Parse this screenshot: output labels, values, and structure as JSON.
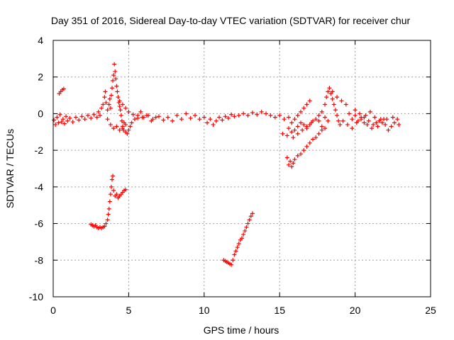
{
  "chart_data": {
    "type": "scatter",
    "title": "Day 351 of 2016, Sidereal Day-to-day VTEC variation (SDTVAR) for receiver chur",
    "xlabel": "GPS time / hours",
    "ylabel": "SDTVAR / TECUs",
    "xlim": [
      0,
      25
    ],
    "ylim": [
      -10,
      4
    ],
    "xticks": [
      0,
      5,
      10,
      15,
      20,
      25
    ],
    "yticks": [
      4,
      2,
      0,
      -2,
      -4,
      -6,
      -8,
      -10
    ],
    "grid": true,
    "marker": "+",
    "color": "#ff0000",
    "series": [
      {
        "name": "SDTVAR",
        "points": [
          [
            0.05,
            -0.35
          ],
          [
            0.15,
            -0.6
          ],
          [
            0.25,
            -0.2
          ],
          [
            0.35,
            -0.5
          ],
          [
            0.45,
            -0.05
          ],
          [
            0.55,
            -0.45
          ],
          [
            0.65,
            -0.3
          ],
          [
            0.75,
            -0.55
          ],
          [
            0.85,
            -0.15
          ],
          [
            0.95,
            -0.4
          ],
          [
            1.1,
            -0.25
          ],
          [
            1.3,
            -0.45
          ],
          [
            1.5,
            -0.2
          ],
          [
            1.7,
            -0.35
          ],
          [
            1.9,
            -0.15
          ],
          [
            2.1,
            -0.3
          ],
          [
            2.3,
            -0.1
          ],
          [
            2.5,
            -0.25
          ],
          [
            2.7,
            -0.05
          ],
          [
            2.9,
            -0.2
          ],
          [
            3.0,
            0.1
          ],
          [
            3.1,
            -0.1
          ],
          [
            3.2,
            0.3
          ],
          [
            3.3,
            0.5
          ],
          [
            3.4,
            0.9
          ],
          [
            3.45,
            1.2
          ],
          [
            3.5,
            0.6
          ],
          [
            3.6,
            0.2
          ],
          [
            3.7,
            0.5
          ],
          [
            3.75,
            0.8
          ],
          [
            3.8,
            0.3
          ],
          [
            3.85,
            1.0
          ],
          [
            3.9,
            1.4
          ],
          [
            3.95,
            1.8
          ],
          [
            4.0,
            2.1
          ],
          [
            4.05,
            2.7
          ],
          [
            4.1,
            2.3
          ],
          [
            4.15,
            1.9
          ],
          [
            4.2,
            1.5
          ],
          [
            4.25,
            1.2
          ],
          [
            4.3,
            0.9
          ],
          [
            4.35,
            0.6
          ],
          [
            4.4,
            0.4
          ],
          [
            4.45,
            0.2
          ],
          [
            4.5,
            -0.1
          ],
          [
            4.55,
            -0.4
          ],
          [
            4.6,
            -0.7
          ],
          [
            4.65,
            -0.9
          ],
          [
            4.7,
            -0.5
          ],
          [
            4.8,
            -1.0
          ],
          [
            4.9,
            -1.1
          ],
          [
            5.0,
            -0.9
          ],
          [
            5.1,
            -0.7
          ],
          [
            5.2,
            -0.5
          ],
          [
            5.4,
            -0.3
          ],
          [
            5.6,
            -0.1
          ],
          [
            5.8,
            0.1
          ],
          [
            6.0,
            -0.2
          ],
          [
            6.3,
            -0.1
          ],
          [
            6.6,
            -0.3
          ],
          [
            4.4,
            0.7
          ],
          [
            4.6,
            0.5
          ],
          [
            4.8,
            0.3
          ],
          [
            5.0,
            0.1
          ],
          [
            5.3,
            -0.05
          ],
          [
            5.6,
            -0.25
          ],
          [
            5.9,
            -0.2
          ],
          [
            6.2,
            -0.1
          ],
          [
            6.5,
            -0.4
          ],
          [
            6.8,
            -0.2
          ],
          [
            3.6,
            -0.3
          ],
          [
            3.8,
            -0.6
          ],
          [
            4.0,
            -0.8
          ],
          [
            4.2,
            -0.7
          ],
          [
            4.4,
            -0.9
          ],
          [
            4.6,
            -0.8
          ],
          [
            4.8,
            -0.6
          ],
          [
            7.0,
            -0.15
          ],
          [
            7.3,
            -0.35
          ],
          [
            7.6,
            -0.2
          ],
          [
            7.9,
            -0.4
          ],
          [
            8.2,
            -0.1
          ],
          [
            8.5,
            -0.3
          ],
          [
            8.8,
            0.0
          ],
          [
            9.1,
            -0.25
          ],
          [
            9.4,
            -0.1
          ],
          [
            9.7,
            -0.3
          ],
          [
            10.0,
            -0.2
          ],
          [
            10.2,
            -0.5
          ],
          [
            10.4,
            -0.3
          ],
          [
            10.6,
            -0.6
          ],
          [
            10.8,
            -0.4
          ],
          [
            11.0,
            -0.2
          ],
          [
            11.2,
            -0.35
          ],
          [
            11.4,
            -0.15
          ],
          [
            11.6,
            -0.25
          ],
          [
            11.8,
            -0.05
          ],
          [
            12.0,
            -0.15
          ],
          [
            12.3,
            -0.1
          ],
          [
            12.6,
            0.0
          ],
          [
            12.9,
            -0.1
          ],
          [
            13.2,
            0.05
          ],
          [
            13.5,
            -0.05
          ],
          [
            13.8,
            0.1
          ],
          [
            14.1,
            0.0
          ],
          [
            14.4,
            -0.1
          ],
          [
            14.7,
            -0.2
          ],
          [
            15.0,
            -0.1
          ],
          [
            15.3,
            -0.3
          ],
          [
            15.6,
            -0.2
          ],
          [
            15.8,
            -0.5
          ],
          [
            16.0,
            -0.3
          ],
          [
            16.2,
            -0.1
          ],
          [
            16.4,
            0.1
          ],
          [
            16.6,
            0.3
          ],
          [
            16.8,
            0.5
          ],
          [
            17.0,
            0.7
          ],
          [
            15.2,
            -1.1
          ],
          [
            15.5,
            -1.2
          ],
          [
            15.8,
            -1.0
          ],
          [
            16.0,
            -0.9
          ],
          [
            16.2,
            -0.7
          ],
          [
            16.4,
            -0.5
          ],
          [
            16.6,
            -0.6
          ],
          [
            16.8,
            -0.8
          ],
          [
            17.0,
            -0.6
          ],
          [
            17.2,
            -0.4
          ],
          [
            15.6,
            -0.8
          ],
          [
            15.9,
            -1.3
          ],
          [
            16.2,
            -1.1
          ],
          [
            16.5,
            -0.9
          ],
          [
            16.8,
            -0.7
          ],
          [
            17.1,
            -0.5
          ],
          [
            17.4,
            -0.3
          ],
          [
            17.6,
            -0.1
          ],
          [
            17.8,
            0.1
          ],
          [
            18.0,
            0.5
          ],
          [
            18.1,
            0.9
          ],
          [
            18.2,
            1.2
          ],
          [
            18.3,
            1.4
          ],
          [
            18.4,
            1.1
          ],
          [
            18.5,
            0.8
          ],
          [
            18.6,
            0.5
          ],
          [
            18.7,
            0.2
          ],
          [
            18.8,
            -0.1
          ],
          [
            18.9,
            -0.4
          ],
          [
            19.0,
            -0.6
          ],
          [
            18.0,
            -0.2
          ],
          [
            18.2,
            -0.4
          ],
          [
            17.8,
            -0.7
          ],
          [
            17.6,
            -0.4
          ],
          [
            18.5,
            1.2
          ],
          [
            18.8,
            0.9
          ],
          [
            19.1,
            0.7
          ],
          [
            19.4,
            0.5
          ],
          [
            19.6,
            0.0
          ],
          [
            19.8,
            -0.3
          ],
          [
            20.0,
            -0.1
          ],
          [
            20.2,
            -0.4
          ],
          [
            20.4,
            -0.2
          ],
          [
            20.6,
            -0.5
          ],
          [
            19.2,
            -0.4
          ],
          [
            19.5,
            -0.6
          ],
          [
            19.8,
            -0.8
          ],
          [
            20.1,
            -0.5
          ],
          [
            20.4,
            -0.3
          ],
          [
            20.7,
            -0.1
          ],
          [
            21.0,
            0.1
          ],
          [
            21.3,
            -0.2
          ],
          [
            21.6,
            -0.4
          ],
          [
            21.9,
            -0.3
          ],
          [
            20.8,
            -0.6
          ],
          [
            21.1,
            -0.8
          ],
          [
            21.4,
            -0.5
          ],
          [
            21.7,
            -0.3
          ],
          [
            22.0,
            -0.6
          ],
          [
            22.2,
            -0.9
          ],
          [
            22.4,
            -0.7
          ],
          [
            22.6,
            -0.5
          ],
          [
            22.8,
            -0.3
          ],
          [
            22.9,
            -0.6
          ],
          [
            20.0,
            0.2
          ],
          [
            20.3,
            0.0
          ],
          [
            20.6,
            -0.2
          ],
          [
            20.9,
            -0.4
          ],
          [
            21.2,
            -0.6
          ],
          [
            21.5,
            -0.7
          ],
          [
            21.8,
            -0.5
          ],
          [
            22.1,
            -0.3
          ],
          [
            22.5,
            -0.2
          ],
          [
            0.4,
            1.1
          ],
          [
            0.5,
            1.2
          ],
          [
            0.6,
            1.3
          ],
          [
            0.7,
            1.35
          ],
          [
            15.5,
            -2.4
          ],
          [
            15.6,
            -2.8
          ],
          [
            15.7,
            -2.6
          ],
          [
            15.8,
            -2.9
          ],
          [
            15.9,
            -2.7
          ],
          [
            16.0,
            -2.5
          ],
          [
            16.2,
            -2.3
          ],
          [
            16.4,
            -2.2
          ],
          [
            16.6,
            -2.0
          ],
          [
            16.8,
            -1.8
          ],
          [
            17.0,
            -1.6
          ],
          [
            17.2,
            -1.4
          ],
          [
            17.4,
            -1.3
          ],
          [
            17.6,
            -1.1
          ],
          [
            17.8,
            -0.9
          ],
          [
            18.0,
            -0.8
          ],
          [
            2.5,
            -6.05
          ],
          [
            2.6,
            -6.1
          ],
          [
            2.7,
            -6.15
          ],
          [
            2.8,
            -6.1
          ],
          [
            2.9,
            -6.2
          ],
          [
            3.0,
            -6.25
          ],
          [
            3.1,
            -6.2
          ],
          [
            3.2,
            -6.25
          ],
          [
            3.3,
            -6.2
          ],
          [
            3.4,
            -6.15
          ],
          [
            3.5,
            -6.0
          ],
          [
            3.6,
            -5.8
          ],
          [
            3.65,
            -5.5
          ],
          [
            3.7,
            -5.2
          ],
          [
            3.75,
            -4.8
          ],
          [
            3.8,
            -4.4
          ],
          [
            3.85,
            -4.0
          ],
          [
            3.9,
            -3.6
          ],
          [
            3.95,
            -3.4
          ],
          [
            4.0,
            -4.2
          ],
          [
            4.1,
            -4.5
          ],
          [
            4.2,
            -4.4
          ],
          [
            4.3,
            -4.6
          ],
          [
            4.4,
            -4.5
          ],
          [
            4.5,
            -4.4
          ],
          [
            4.6,
            -4.3
          ],
          [
            4.7,
            -4.2
          ],
          [
            4.8,
            -4.15
          ],
          [
            11.3,
            -8.0
          ],
          [
            11.4,
            -8.05
          ],
          [
            11.5,
            -8.1
          ],
          [
            11.6,
            -8.15
          ],
          [
            11.7,
            -8.2
          ],
          [
            11.8,
            -8.25
          ],
          [
            11.9,
            -8.0
          ],
          [
            12.0,
            -7.7
          ],
          [
            12.1,
            -7.5
          ],
          [
            12.2,
            -7.3
          ],
          [
            12.3,
            -7.1
          ],
          [
            12.4,
            -6.9
          ],
          [
            12.5,
            -6.8
          ],
          [
            12.6,
            -6.6
          ],
          [
            12.7,
            -6.4
          ],
          [
            12.8,
            -6.2
          ],
          [
            12.9,
            -6.0
          ],
          [
            13.0,
            -5.8
          ],
          [
            13.1,
            -5.6
          ],
          [
            13.2,
            -5.45
          ]
        ]
      }
    ]
  }
}
